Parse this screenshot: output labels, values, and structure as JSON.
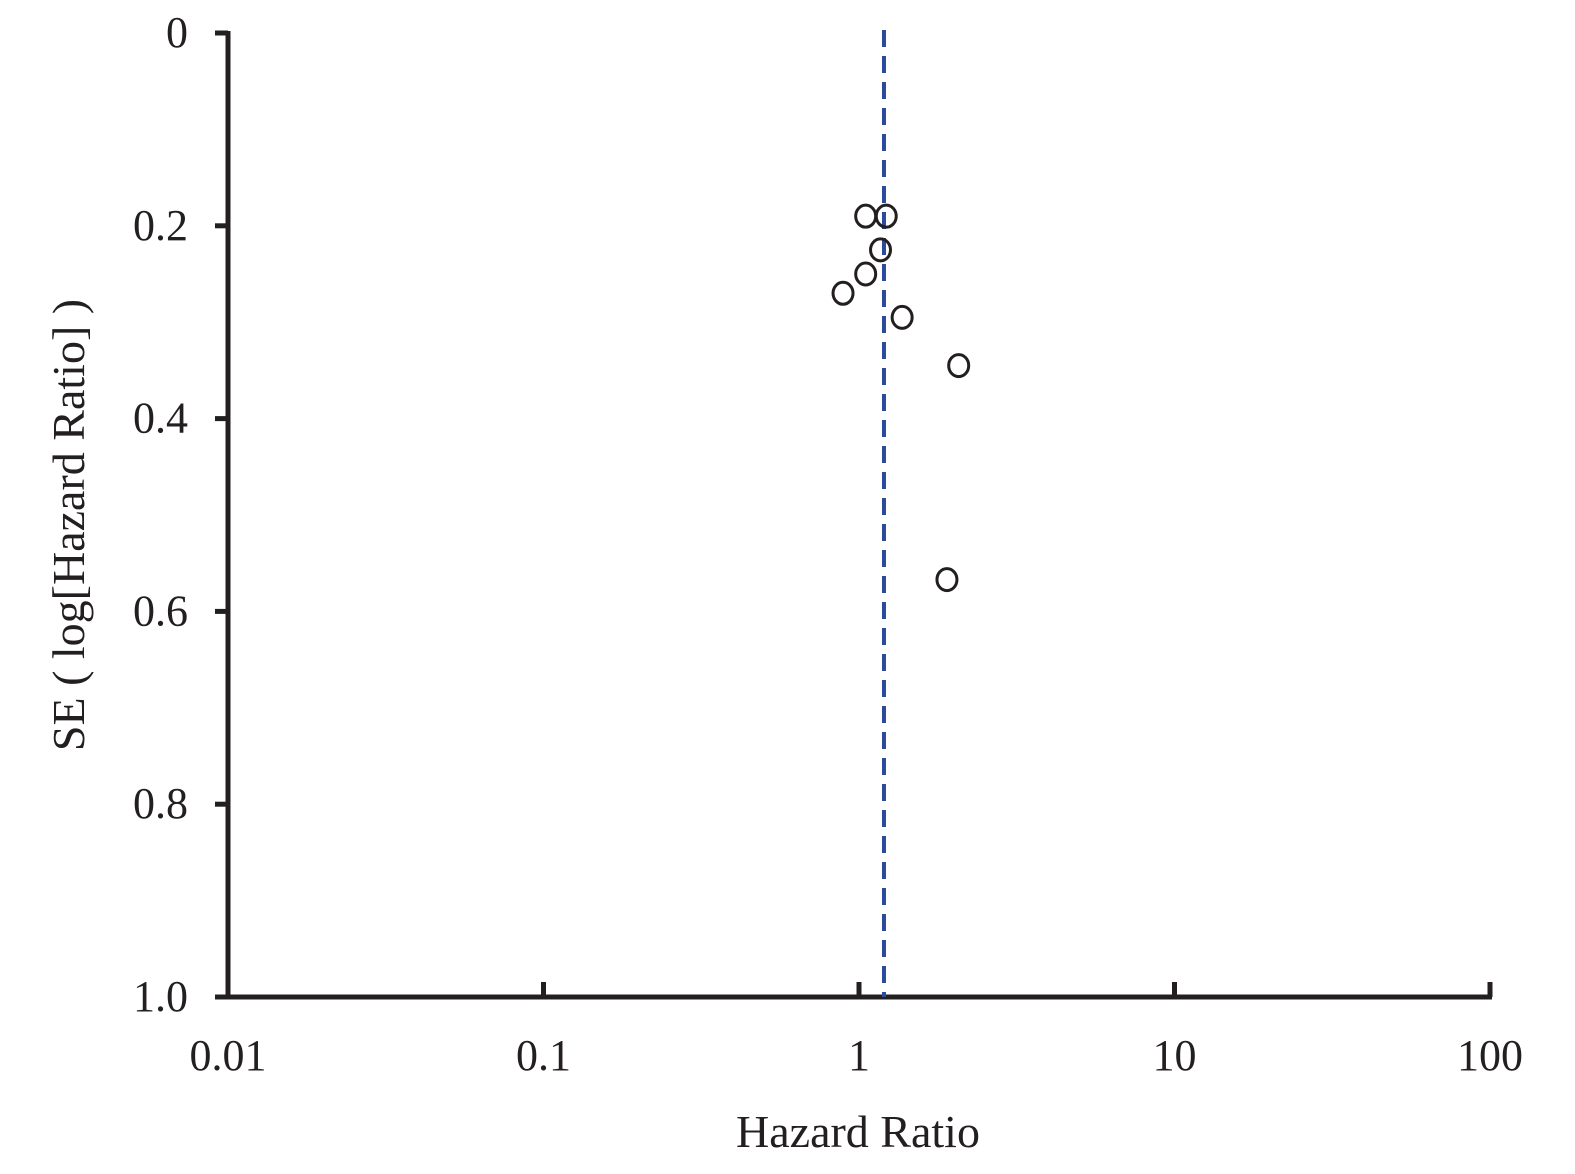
{
  "chart_data": {
    "type": "scatter",
    "title": "",
    "xlabel": "Hazard Ratio",
    "ylabel": "SE ( log[Hazard Ratio] )",
    "x_scale": "log",
    "xlim": [
      0.01,
      100
    ],
    "ylim": [
      0,
      1.0
    ],
    "y_inverted": true,
    "x_ticks": [
      {
        "value": 0.01,
        "label": "0.01"
      },
      {
        "value": 0.1,
        "label": "0.1"
      },
      {
        "value": 1,
        "label": "1"
      },
      {
        "value": 10,
        "label": "10"
      },
      {
        "value": 100,
        "label": "100"
      }
    ],
    "y_ticks": [
      {
        "value": 0,
        "label": "0"
      },
      {
        "value": 0.2,
        "label": "0.2"
      },
      {
        "value": 0.4,
        "label": "0.4"
      },
      {
        "value": 0.6,
        "label": "0.6"
      },
      {
        "value": 0.8,
        "label": "0.8"
      },
      {
        "value": 1.0,
        "label": "1.0"
      }
    ],
    "points": [
      {
        "x": 1.05,
        "y": 0.19
      },
      {
        "x": 1.22,
        "y": 0.19
      },
      {
        "x": 1.17,
        "y": 0.225
      },
      {
        "x": 1.05,
        "y": 0.25
      },
      {
        "x": 0.89,
        "y": 0.27
      },
      {
        "x": 1.37,
        "y": 0.295
      },
      {
        "x": 2.07,
        "y": 0.345
      },
      {
        "x": 1.9,
        "y": 0.567
      }
    ],
    "reference_line": {
      "x": 1.2,
      "style": "dashed",
      "color": "#2b4a9b"
    },
    "marker": {
      "shape": "open-circle",
      "color": "#231f20"
    },
    "axis_color": "#231f20",
    "grid": false
  }
}
